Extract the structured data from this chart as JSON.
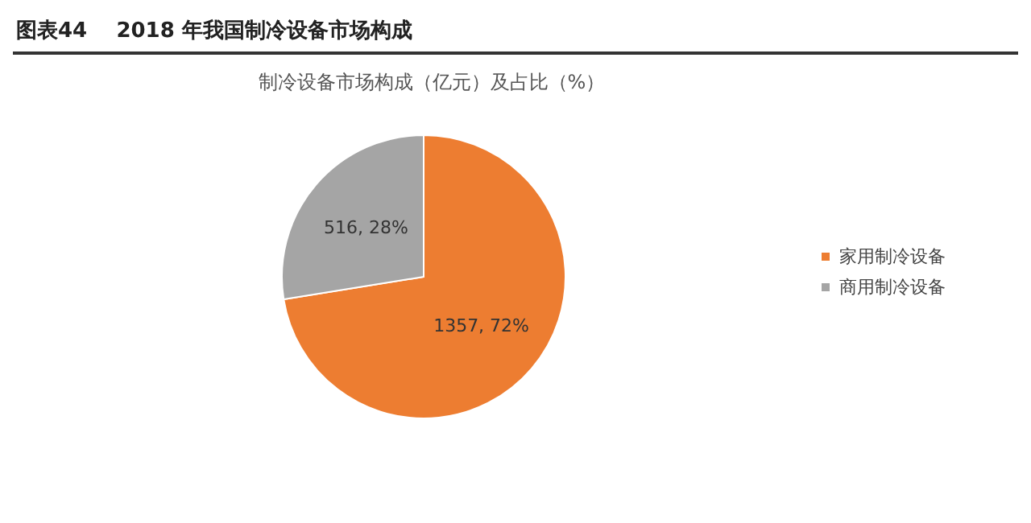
{
  "chart_data": {
    "type": "pie",
    "title": "图表44    2018 年我国制冷设备市场构成",
    "subtitle": "制冷设备市场构成（亿元）及占比（%）",
    "categories": [
      "家用制冷设备",
      "商用制冷设备"
    ],
    "values": [
      1357,
      516
    ],
    "colors": [
      "#ed7d31",
      "#a5a5a5"
    ],
    "value_labels": [
      "1357, 72%",
      "516, 28%"
    ],
    "legend": "right"
  }
}
